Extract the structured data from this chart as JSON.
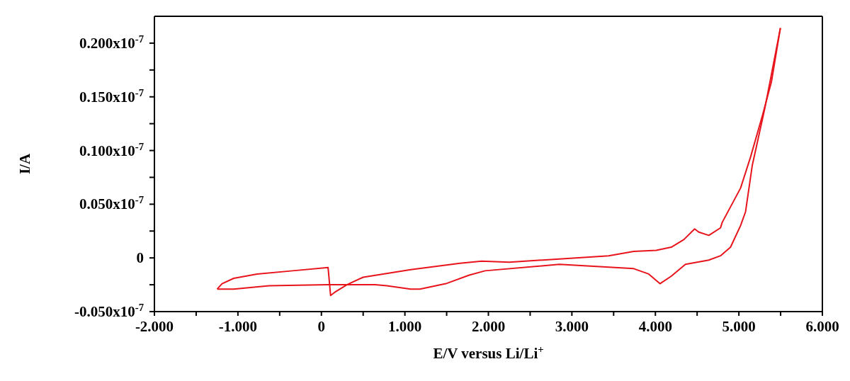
{
  "chart_data": {
    "type": "line",
    "xlabel": "E/V versus Li/Li$^{+}$",
    "ylabel": "I/A",
    "series": [
      {
        "color": "#e8141c",
        "x": [
          -1.248,
          -1.05,
          -0.627,
          0.076,
          0.644,
          0.785,
          1.068,
          1.18,
          1.49,
          1.77,
          1.96,
          2.85,
          3.74,
          3.92,
          4.055,
          4.19,
          4.36,
          4.64,
          4.78,
          4.9,
          5.02,
          5.08,
          5.16,
          5.31,
          5.39,
          5.497
        ],
        "values": [
          -2.9e-09,
          -2.9e-09,
          -2.6e-09,
          -2.5e-09,
          -2.5e-09,
          -2.6e-09,
          -2.9e-09,
          -2.9e-09,
          -2.4e-09,
          -1.6e-09,
          -1.2e-09,
          -6e-10,
          -1e-09,
          -1.5e-09,
          -2.4e-09,
          -1.7e-09,
          -6e-10,
          -2e-10,
          2e-10,
          1e-09,
          3e-09,
          4.3e-09,
          8.6e-09,
          1.39e-08,
          1.71e-08,
          2.14e-08
        ]
      },
      {
        "color": "#e8141c",
        "x": [
          5.497,
          5.39,
          5.28,
          5.14,
          5.02,
          4.8,
          4.78,
          4.64,
          4.52,
          4.47,
          4.34,
          4.19,
          4.01,
          3.74,
          3.44,
          2.85,
          2.25,
          1.92,
          1.66,
          1.07,
          0.5,
          0.305,
          0.16,
          0.11,
          0.08,
          -0.345,
          -0.771,
          -1.05,
          -1.19,
          -1.248
        ],
        "values": [
          2.14e-08,
          1.64e-08,
          1.32e-08,
          9.4e-09,
          6.5e-09,
          3.3e-09,
          2.8e-09,
          2.1e-09,
          2.4e-09,
          2.7e-09,
          1.7e-09,
          1e-09,
          7e-10,
          6e-10,
          2e-10,
          -1e-10,
          -4e-10,
          -3e-10,
          -5e-10,
          -1.1e-09,
          -1.8e-09,
          -2.5e-09,
          -3.2e-09,
          -3.5e-09,
          -9e-10,
          -1.2e-09,
          -1.5e-09,
          -1.9e-09,
          -2.4e-09,
          -2.9e-09
        ]
      }
    ],
    "xlim": [
      -2,
      6
    ],
    "xticks": [
      {
        "value": -2,
        "label": "-2.000"
      },
      {
        "value": -1.5,
        "label": null
      },
      {
        "value": -1,
        "label": "-1.000"
      },
      {
        "value": -0.5,
        "label": null
      },
      0,
      {
        "value": 0.5,
        "label": null
      },
      {
        "value": 1,
        "label": "1.000"
      },
      {
        "value": 1.5,
        "label": null
      },
      {
        "value": 2,
        "label": "2.000"
      },
      {
        "value": 2.5,
        "label": null
      },
      {
        "value": 3,
        "label": "3.000"
      },
      {
        "value": 3.5,
        "label": null
      },
      {
        "value": 4,
        "label": "4.000"
      },
      {
        "value": 4.5,
        "label": null
      },
      {
        "value": 5,
        "label": "5.000"
      },
      {
        "value": 5.5,
        "label": null
      },
      {
        "value": 6,
        "label": "6.000"
      }
    ],
    "ylim": [
      -5e-09,
      2.25e-08
    ],
    "yticks": [
      {
        "value": -5e-09,
        "label": "-0.050x10$^{-7}$"
      },
      {
        "value": -2.5e-09,
        "label": null
      },
      0,
      {
        "value": 2.5e-09,
        "label": null
      },
      {
        "value": 5e-09,
        "label": "0.050x10$^{-7}$"
      },
      {
        "value": 7.5e-09,
        "label": null
      },
      {
        "value": 1e-08,
        "label": "0.100x10$^{-7}$"
      },
      {
        "value": 1.25e-08,
        "label": null
      },
      {
        "value": 1.5e-08,
        "label": "0.150x10$^{-7}$"
      },
      {
        "value": 1.75e-08,
        "label": null
      },
      {
        "value": 2e-08,
        "label": "0.200x10$^{-7}$"
      }
    ]
  }
}
